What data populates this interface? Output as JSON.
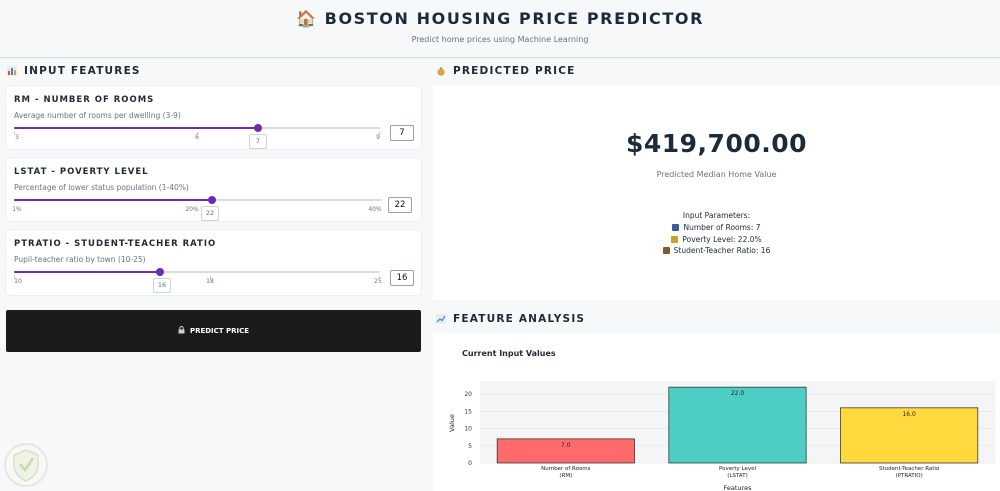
{
  "header": {
    "icon": "house-icon",
    "title": "🏠 BOSTON HOUSING PRICE PREDICTOR",
    "subtitle": "Predict home prices using Machine Learning"
  },
  "input_section": {
    "title": "INPUT FEATURES",
    "icon": "bar-chart-icon",
    "features": [
      {
        "title": "RM - NUMBER OF ROOMS",
        "description": "Average number of rooms per dwelling (3-9)",
        "min_label": "3",
        "mid_label": "6",
        "max_label": "9",
        "value": "7",
        "fraction": 0.667
      },
      {
        "title": "LSTAT - POVERTY LEVEL",
        "description": "Percentage of lower status population (1-40%)",
        "min_label": "1%",
        "mid_label": "20%",
        "max_label": "40%",
        "value": "22",
        "fraction": 0.538
      },
      {
        "title": "PTRATIO - STUDENT-TEACHER RATIO",
        "description": "Pupil-teacher ratio by town (10-25)",
        "min_label": "10",
        "mid_label": "18",
        "max_label": "25",
        "value": "16",
        "fraction": 0.4
      }
    ],
    "predict_button": "PREDICT PRICE",
    "predict_icon": "lock-icon"
  },
  "price_section": {
    "title": "PREDICTED PRICE",
    "icon": "money-bag-icon",
    "price": "$419,700.00",
    "price_label": "Predicted Median Home Value",
    "params_title": "Input Parameters:",
    "params": [
      {
        "icon": "bed-icon",
        "text": "Number of Rooms: 7"
      },
      {
        "icon": "bar-chart-icon",
        "text": "Poverty Level: 22.0%"
      },
      {
        "icon": "teacher-icon",
        "text": "Student-Teacher Ratio: 16"
      }
    ]
  },
  "analysis_section": {
    "title": "FEATURE ANALYSIS",
    "icon": "line-chart-icon"
  },
  "chart_data": {
    "type": "bar",
    "title": "Current Input Values",
    "categories": [
      "Number of Rooms\n(RM)",
      "Poverty Level\n(LSTAT)",
      "Student-Teacher Ratio\n(PTRATIO)"
    ],
    "values": [
      7,
      22,
      16
    ],
    "data_labels": [
      "7.0",
      "22.0",
      "16.0"
    ],
    "colors": [
      "#ff6b6b",
      "#4ecdc4",
      "#ffd93d"
    ],
    "xlabel": "Features",
    "ylabel": "Value",
    "yticks": [
      0,
      5,
      10,
      15,
      20
    ],
    "ylim": [
      0,
      23.2
    ],
    "grid": true
  }
}
